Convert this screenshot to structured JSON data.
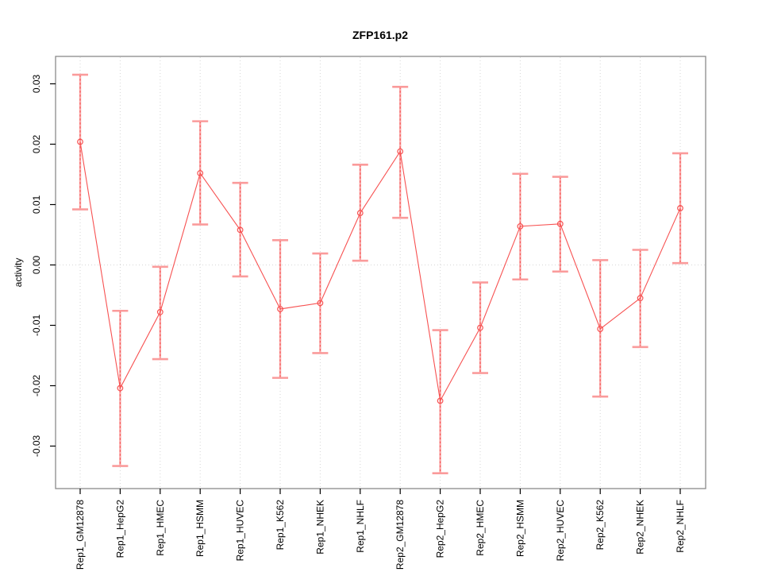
{
  "figure": {
    "title": "ZFP161.p2",
    "ylabel": "activity"
  },
  "colors": {
    "series_line": "#f75151",
    "error_bar": "#fa9b9b",
    "grid": "#d6d6d6",
    "plot_border": "#8a8a8a",
    "zero_line": "#d6d6d6",
    "text": "#000000",
    "background": "#ffffff"
  },
  "chart_data": {
    "type": "line",
    "title": "ZFP161.p2",
    "xlabel": "",
    "ylabel": "activity",
    "legend": "none",
    "grid": "vertical dotted gridline at each category; horizontal dotted line at y=0 only",
    "ylim": [
      -0.0355,
      0.0325
    ],
    "yticks": [
      "-0.03",
      "-0.02",
      "-0.01",
      "0.00",
      "0.01",
      "0.02",
      "0.03"
    ],
    "categories": [
      "Rep1_GM12878",
      "Rep1_HepG2",
      "Rep1_HMEC",
      "Rep1_HSMM",
      "Rep1_HUVEC",
      "Rep1_K562",
      "Rep1_NHEK",
      "Rep1_NHLF",
      "Rep2_GM12878",
      "Rep2_HepG2",
      "Rep2_HMEC",
      "Rep2_HSMM",
      "Rep2_HUVEC",
      "Rep2_K562",
      "Rep2_NHEK",
      "Rep2_NHLF"
    ],
    "series": [
      {
        "name": "activity",
        "marker": "open-circle",
        "values": [
          0.0204,
          -0.0204,
          -0.0078,
          0.0152,
          0.0058,
          -0.0073,
          -0.0063,
          0.0086,
          0.0188,
          -0.0225,
          -0.0104,
          0.0064,
          0.0068,
          -0.0106,
          -0.0055,
          0.0094
        ],
        "ci_low": [
          0.0092,
          -0.0333,
          -0.0156,
          0.0067,
          -0.0019,
          -0.0187,
          -0.0146,
          0.0007,
          0.0078,
          -0.0345,
          -0.0179,
          -0.0024,
          -0.0011,
          -0.0218,
          -0.0136,
          0.0003
        ],
        "ci_high": [
          0.0315,
          -0.0076,
          -0.0003,
          0.0238,
          0.0136,
          0.0041,
          0.0019,
          0.0166,
          0.0295,
          -0.0108,
          -0.0029,
          0.0151,
          0.0146,
          0.0008,
          0.0025,
          0.0185
        ]
      }
    ]
  }
}
